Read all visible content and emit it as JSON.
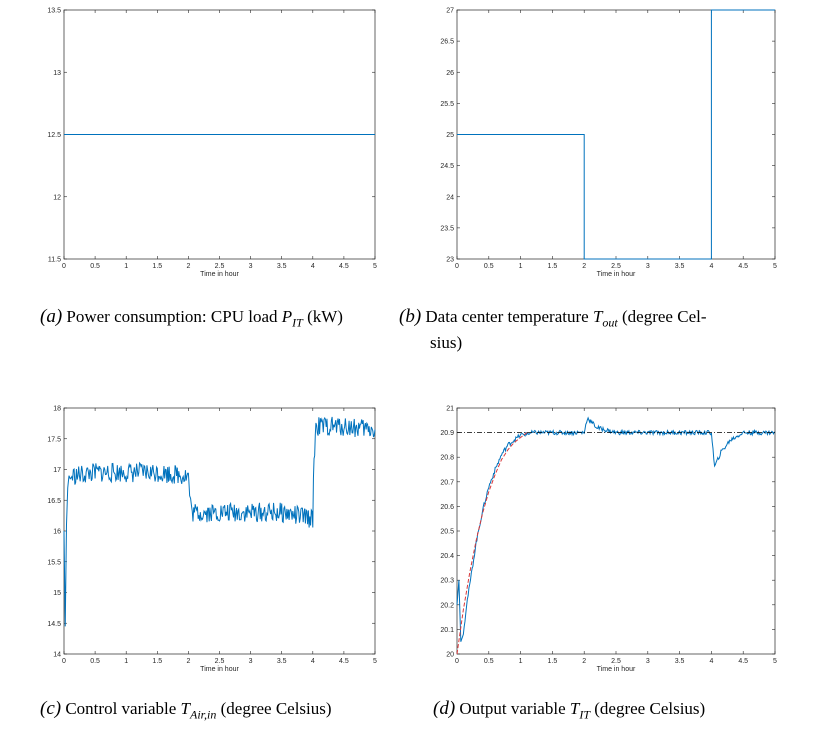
{
  "chart_data": [
    {
      "type": "line",
      "panel": "a",
      "xlabel": "Time in hour",
      "xlim": [
        0,
        5
      ],
      "ylim": [
        11.5,
        13.5
      ],
      "xticks": [
        "0",
        "0.5",
        "1",
        "1.5",
        "2",
        "2.5",
        "3",
        "3.5",
        "4",
        "4.5",
        "5"
      ],
      "yticks": [
        "11.5",
        "12",
        "12.5",
        "13",
        "13.5"
      ],
      "series": [
        {
          "color": "#0072bd",
          "x": [
            0,
            5
          ],
          "y": [
            12.5,
            12.5
          ]
        }
      ],
      "caption": {
        "letter": "(a)",
        "text": "Power consumption: CPU load ",
        "symbol": "P",
        "sub": "IT",
        "tail": " (kW)"
      }
    },
    {
      "type": "line",
      "panel": "b",
      "xlabel": "Time in hour",
      "xlim": [
        0,
        5
      ],
      "ylim": [
        23,
        27
      ],
      "xticks": [
        "0",
        "0.5",
        "1",
        "1.5",
        "2",
        "2.5",
        "3",
        "3.5",
        "4",
        "4.5",
        "5"
      ],
      "yticks": [
        "23",
        "23.5",
        "24",
        "24.5",
        "25",
        "25.5",
        "26",
        "26.5",
        "27"
      ],
      "series": [
        {
          "color": "#0072bd",
          "x": [
            0,
            2,
            2,
            4,
            4,
            5
          ],
          "y": [
            25,
            25,
            23,
            23,
            27,
            27
          ]
        }
      ],
      "caption": {
        "letter": "(b)",
        "text": "Data center temperature ",
        "symbol": "T",
        "sub": "out",
        "tail": " (degree Cel-",
        "line2": "sius)"
      }
    },
    {
      "type": "line",
      "panel": "c",
      "xlabel": "Time in hour",
      "xlim": [
        0,
        5
      ],
      "ylim": [
        14,
        18
      ],
      "xticks": [
        "0",
        "0.5",
        "1",
        "1.5",
        "2",
        "2.5",
        "3",
        "3.5",
        "4",
        "4.5",
        "5"
      ],
      "yticks": [
        "14",
        "14.5",
        "15",
        "15.5",
        "16",
        "16.5",
        "17",
        "17.5",
        "18"
      ],
      "series": [
        {
          "color": "#0072bd",
          "x": [
            0,
            0.02,
            0.04,
            0.06,
            0.08,
            0.1,
            0.15,
            0.2,
            0.5,
            1.0,
            1.5,
            2.0,
            2.02,
            2.05,
            2.5,
            3.0,
            3.5,
            4.0,
            4.02,
            4.05,
            4.5,
            5.0
          ],
          "y": [
            16.0,
            14.45,
            16.1,
            16.7,
            16.9,
            16.85,
            16.9,
            16.9,
            16.95,
            16.95,
            16.95,
            16.9,
            16.6,
            16.3,
            16.3,
            16.3,
            16.3,
            16.2,
            17.2,
            17.7,
            17.7,
            17.65
          ]
        }
      ],
      "caption": {
        "letter": "(c)",
        "text": "Control variable ",
        "symbol": "T",
        "sub": "Air,in",
        "tail": " (degree Celsius)"
      }
    },
    {
      "type": "line",
      "panel": "d",
      "xlabel": "Time in hour",
      "xlim": [
        0,
        5
      ],
      "ylim": [
        20,
        21
      ],
      "xticks": [
        "0",
        "0.5",
        "1",
        "1.5",
        "2",
        "2.5",
        "3",
        "3.5",
        "4",
        "4.5",
        "5"
      ],
      "yticks": [
        "20",
        "20.1",
        "20.2",
        "20.3",
        "20.4",
        "20.5",
        "20.6",
        "20.7",
        "20.8",
        "20.9",
        "21"
      ],
      "series": [
        {
          "color": "#0072bd",
          "x": [
            0,
            0.03,
            0.06,
            0.1,
            0.15,
            0.2,
            0.3,
            0.4,
            0.5,
            0.6,
            0.7,
            0.8,
            0.9,
            1.0,
            1.2,
            1.5,
            2.0,
            2.05,
            2.2,
            2.5,
            3.0,
            3.5,
            4.0,
            4.05,
            4.15,
            4.3,
            4.5,
            5.0
          ],
          "y": [
            20.2,
            20.3,
            20.05,
            20.08,
            20.2,
            20.28,
            20.45,
            20.58,
            20.68,
            20.75,
            20.81,
            20.85,
            20.87,
            20.89,
            20.9,
            20.9,
            20.9,
            20.96,
            20.92,
            20.9,
            20.9,
            20.9,
            20.9,
            20.76,
            20.82,
            20.87,
            20.9,
            20.9
          ]
        },
        {
          "color": "#d9383a",
          "style": "dashed",
          "x": [
            0,
            0.05,
            0.1,
            0.2,
            0.3,
            0.4,
            0.5,
            0.6,
            0.7,
            0.8,
            0.9,
            1.0,
            1.1
          ],
          "y": [
            20.0,
            20.09,
            20.18,
            20.33,
            20.46,
            20.57,
            20.66,
            20.73,
            20.79,
            20.83,
            20.86,
            20.88,
            20.9
          ]
        },
        {
          "color": "#000000",
          "style": "dashdot",
          "x": [
            0,
            5
          ],
          "y": [
            20.9,
            20.9
          ]
        }
      ],
      "caption": {
        "letter": "(d)",
        "text": "Output variable ",
        "symbol": "T",
        "sub": "IT",
        "tail": " (degree Celsius)"
      }
    }
  ]
}
